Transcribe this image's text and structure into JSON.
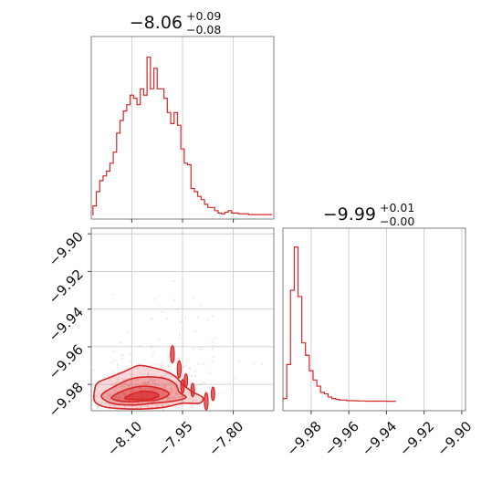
{
  "chart_data": {
    "type": "corner",
    "color": "#d62728",
    "panels": [
      {
        "id": "hist_param1",
        "type": "histogram",
        "title": {
          "median": "−8.06",
          "plus": "+0.09",
          "minus": "−0.08"
        },
        "x_range": [
          -8.22,
          -7.68
        ],
        "bins": [
          {
            "x": -8.21,
            "h": 6
          },
          {
            "x": -8.2,
            "h": 15
          },
          {
            "x": -8.19,
            "h": 22
          },
          {
            "x": -8.18,
            "h": 25
          },
          {
            "x": -8.17,
            "h": 28
          },
          {
            "x": -8.16,
            "h": 33
          },
          {
            "x": -8.15,
            "h": 40
          },
          {
            "x": -8.14,
            "h": 52
          },
          {
            "x": -8.13,
            "h": 60
          },
          {
            "x": -8.12,
            "h": 66
          },
          {
            "x": -8.11,
            "h": 70
          },
          {
            "x": -8.1,
            "h": 76
          },
          {
            "x": -8.09,
            "h": 74
          },
          {
            "x": -8.08,
            "h": 70
          },
          {
            "x": -8.07,
            "h": 80
          },
          {
            "x": -8.06,
            "h": 76
          },
          {
            "x": -8.05,
            "h": 100
          },
          {
            "x": -8.04,
            "h": 80
          },
          {
            "x": -8.03,
            "h": 93
          },
          {
            "x": -8.02,
            "h": 80
          },
          {
            "x": -8.01,
            "h": 80
          },
          {
            "x": -8.0,
            "h": 74
          },
          {
            "x": -7.99,
            "h": 65
          },
          {
            "x": -7.98,
            "h": 58
          },
          {
            "x": -7.97,
            "h": 65
          },
          {
            "x": -7.96,
            "h": 57
          },
          {
            "x": -7.95,
            "h": 42
          },
          {
            "x": -7.94,
            "h": 33
          },
          {
            "x": -7.93,
            "h": 32
          },
          {
            "x": -7.92,
            "h": 17
          },
          {
            "x": -7.91,
            "h": 15
          },
          {
            "x": -7.9,
            "h": 12
          },
          {
            "x": -7.89,
            "h": 10
          },
          {
            "x": -7.88,
            "h": 7
          },
          {
            "x": -7.87,
            "h": 5
          },
          {
            "x": -7.86,
            "h": 5
          },
          {
            "x": -7.85,
            "h": 3
          },
          {
            "x": -7.84,
            "h": 1.5
          },
          {
            "x": -7.83,
            "h": 1
          },
          {
            "x": -7.82,
            "h": 2
          },
          {
            "x": -7.81,
            "h": 3
          },
          {
            "x": -7.8,
            "h": 1.5
          },
          {
            "x": -7.79,
            "h": 1.5
          },
          {
            "x": -7.78,
            "h": 1
          },
          {
            "x": -7.77,
            "h": 1
          },
          {
            "x": -7.76,
            "h": 1
          },
          {
            "x": -7.75,
            "h": 0.5
          },
          {
            "x": -7.74,
            "h": 0.5
          },
          {
            "x": -7.73,
            "h": 0.5
          },
          {
            "x": -7.72,
            "h": 0.5
          },
          {
            "x": -7.71,
            "h": 0.5
          },
          {
            "x": -7.7,
            "h": 0.5
          },
          {
            "x": -7.69,
            "h": 0.5
          }
        ],
        "bin_width": 0.01,
        "h_max": 105,
        "grid_x": [
          -8.1,
          -7.95,
          -7.8
        ]
      },
      {
        "id": "hist_param2",
        "type": "histogram",
        "title": {
          "median": "−9.99",
          "plus": "+0.01",
          "minus": "−0.00"
        },
        "x_range": [
          -9.995,
          -9.898
        ],
        "x_ticks": [
          "−9.98",
          "−9.96",
          "−9.94",
          "−9.92",
          "−9.90"
        ],
        "x_tick_values": [
          -9.98,
          -9.96,
          -9.94,
          -9.92,
          -9.9
        ],
        "bins": [
          {
            "x": -9.994,
            "h": 2
          },
          {
            "x": -9.992,
            "h": 24
          },
          {
            "x": -9.99,
            "h": 72
          },
          {
            "x": -9.988,
            "h": 100
          },
          {
            "x": -9.986,
            "h": 68
          },
          {
            "x": -9.984,
            "h": 38
          },
          {
            "x": -9.982,
            "h": 30
          },
          {
            "x": -9.98,
            "h": 20
          },
          {
            "x": -9.978,
            "h": 14
          },
          {
            "x": -9.976,
            "h": 10
          },
          {
            "x": -9.974,
            "h": 6
          },
          {
            "x": -9.972,
            "h": 5
          },
          {
            "x": -9.97,
            "h": 3
          },
          {
            "x": -9.968,
            "h": 2
          },
          {
            "x": -9.966,
            "h": 1.5
          },
          {
            "x": -9.964,
            "h": 1
          },
          {
            "x": -9.962,
            "h": 1
          },
          {
            "x": -9.96,
            "h": 0.6
          },
          {
            "x": -9.958,
            "h": 0.6
          },
          {
            "x": -9.956,
            "h": 0.5
          },
          {
            "x": -9.954,
            "h": 0.4
          },
          {
            "x": -9.952,
            "h": 0.4
          },
          {
            "x": -9.95,
            "h": 0.3
          },
          {
            "x": -9.948,
            "h": 0.3
          },
          {
            "x": -9.946,
            "h": 0.3
          },
          {
            "x": -9.944,
            "h": 0.3
          },
          {
            "x": -9.942,
            "h": 0.3
          },
          {
            "x": -9.94,
            "h": 0.3
          },
          {
            "x": -9.938,
            "h": 0.2
          },
          {
            "x": -9.936,
            "h": 0.2
          }
        ],
        "bin_width": 0.002,
        "h_max": 104
      },
      {
        "id": "joint",
        "type": "contour",
        "x_range": [
          -8.22,
          -7.68
        ],
        "y_range": [
          -9.994,
          -9.897
        ],
        "x_ticks": [
          "−8.10",
          "−7.95",
          "−7.80"
        ],
        "x_tick_values": [
          -8.1,
          -7.95,
          -7.8
        ],
        "y_ticks": [
          "−9.90",
          "−9.92",
          "−9.94",
          "−9.96",
          "−9.98"
        ],
        "y_tick_values": [
          -9.9,
          -9.92,
          -9.94,
          -9.96,
          -9.98
        ],
        "contours": [
          {
            "level": "outer",
            "fill_opacity": 0.18,
            "points": [
              [
                -8.21,
                -9.983
              ],
              [
                -8.2,
                -9.979
              ],
              [
                -8.16,
                -9.976
              ],
              [
                -8.12,
                -9.973
              ],
              [
                -8.08,
                -9.97
              ],
              [
                -8.04,
                -9.971
              ],
              [
                -8.0,
                -9.973
              ],
              [
                -7.97,
                -9.976
              ],
              [
                -7.95,
                -9.98
              ],
              [
                -7.92,
                -9.984
              ],
              [
                -7.89,
                -9.987
              ],
              [
                -7.9,
                -9.99
              ],
              [
                -7.95,
                -9.99
              ],
              [
                -8.0,
                -9.992
              ],
              [
                -8.06,
                -9.993
              ],
              [
                -8.12,
                -9.993
              ],
              [
                -8.18,
                -9.992
              ],
              [
                -8.21,
                -9.989
              ]
            ]
          },
          {
            "level": "mid",
            "fill_opacity": 0.28,
            "points": [
              [
                -8.19,
                -9.986
              ],
              [
                -8.15,
                -9.981
              ],
              [
                -8.1,
                -9.977
              ],
              [
                -8.05,
                -9.976
              ],
              [
                -8.0,
                -9.977
              ],
              [
                -7.97,
                -9.98
              ],
              [
                -7.96,
                -9.984
              ],
              [
                -7.94,
                -9.987
              ],
              [
                -7.98,
                -9.989
              ],
              [
                -8.04,
                -9.99
              ],
              [
                -8.1,
                -9.991
              ],
              [
                -8.16,
                -9.99
              ]
            ]
          },
          {
            "level": "inner",
            "fill_opacity": 0.4,
            "points": [
              [
                -8.16,
                -9.987
              ],
              [
                -8.12,
                -9.983
              ],
              [
                -8.07,
                -9.981
              ],
              [
                -8.02,
                -9.982
              ],
              [
                -7.99,
                -9.985
              ],
              [
                -8.02,
                -9.988
              ],
              [
                -8.08,
                -9.989
              ],
              [
                -8.13,
                -9.989
              ]
            ]
          },
          {
            "level": "core",
            "fill_opacity": 0.6,
            "points": [
              [
                -8.12,
                -9.987
              ],
              [
                -8.08,
                -9.984
              ],
              [
                -8.04,
                -9.984
              ],
              [
                -8.02,
                -9.986
              ],
              [
                -8.05,
                -9.988
              ],
              [
                -8.1,
                -9.988
              ]
            ]
          }
        ],
        "blobs": [
          {
            "x": -7.98,
            "y": -9.964,
            "r": 0.004
          },
          {
            "x": -7.96,
            "y": -9.972,
            "r": 0.004
          },
          {
            "x": -7.94,
            "y": -9.978,
            "r": 0.003
          },
          {
            "x": -7.95,
            "y": -9.981,
            "r": 0.003
          },
          {
            "x": -7.88,
            "y": -9.989,
            "r": 0.004
          },
          {
            "x": -7.86,
            "y": -9.985,
            "r": 0.003
          },
          {
            "x": -7.92,
            "y": -9.983,
            "r": 0.003
          }
        ],
        "scatter_seed": 7,
        "scatter_count": 520
      }
    ]
  }
}
